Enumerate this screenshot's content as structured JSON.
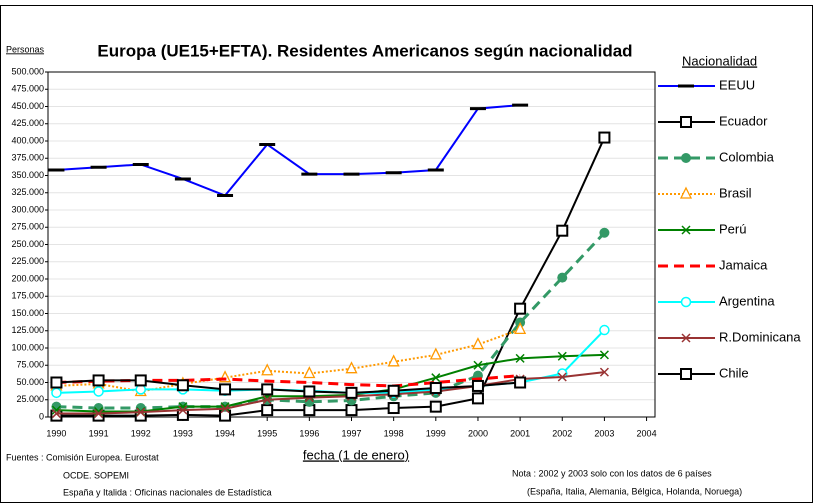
{
  "chart_data": {
    "type": "line",
    "title": "Europa (UE15+EFTA). Residentes Americanos según nacionalidad",
    "ylabel": "Personas",
    "xlabel": "fecha (1 de enero)",
    "legend_title": "Nacionalidad",
    "legend": "right",
    "grid": true,
    "x": [
      1990,
      1991,
      1992,
      1993,
      1994,
      1995,
      1996,
      1997,
      1998,
      1999,
      2000,
      2001,
      2002,
      2003
    ],
    "xlim": [
      1989.8,
      2004.2
    ],
    "xticks": [
      1990,
      1991,
      1992,
      1993,
      1994,
      1995,
      1996,
      1997,
      1998,
      1999,
      2000,
      2001,
      2002,
      2003,
      2004
    ],
    "ylim": [
      0,
      500000
    ],
    "yticks": [
      0,
      {
        "value": 25000,
        "label": "25.000"
      },
      {
        "value": 50000,
        "label": "50.000"
      },
      {
        "value": 75000,
        "label": "75.000"
      },
      {
        "value": 100000,
        "label": "100.000"
      },
      {
        "value": 125000,
        "label": "125.000"
      },
      {
        "value": 150000,
        "label": "150.000"
      },
      {
        "value": 175000,
        "label": "175.000"
      },
      {
        "value": 200000,
        "label": "200.000"
      },
      {
        "value": 225000,
        "label": "225.000"
      },
      {
        "value": 250000,
        "label": "250.000"
      },
      {
        "value": 275000,
        "label": "275.000"
      },
      {
        "value": 300000,
        "label": "300.000"
      },
      {
        "value": 325000,
        "label": "325.000"
      },
      {
        "value": 350000,
        "label": "350.000"
      },
      {
        "value": 375000,
        "label": "375.000"
      },
      {
        "value": 400000,
        "label": "400.000"
      },
      {
        "value": 425000,
        "label": "425.000"
      },
      {
        "value": 450000,
        "label": "450.000"
      },
      {
        "value": 475000,
        "label": "475.000"
      },
      {
        "value": 500000,
        "label": "500.000"
      }
    ],
    "series": [
      {
        "name": "EEUU",
        "color": "#0000ff",
        "marker": "dash",
        "dash": "solid",
        "values": [
          358000,
          362000,
          366000,
          345000,
          321000,
          395000,
          352000,
          352000,
          354000,
          358000,
          447000,
          452000,
          null,
          null
        ]
      },
      {
        "name": "Ecuador",
        "color": "#000000",
        "marker": "square",
        "dash": "solid",
        "values": [
          2000,
          2000,
          2000,
          3000,
          2000,
          10000,
          10000,
          10000,
          13000,
          15000,
          27000,
          157000,
          270000,
          405000
        ]
      },
      {
        "name": "Colombia",
        "color": "#339966",
        "marker": "circle-filled",
        "dash": "dashed",
        "values": [
          15000,
          13000,
          13000,
          15000,
          15000,
          25000,
          22000,
          24000,
          30000,
          35000,
          60000,
          137000,
          202000,
          267000
        ]
      },
      {
        "name": "Brasil",
        "color": "#ff9900",
        "marker": "triangle",
        "dash": "dotted",
        "values": [
          45000,
          48000,
          37000,
          48000,
          57000,
          67000,
          63000,
          70000,
          80000,
          90000,
          105000,
          127000,
          null,
          null
        ]
      },
      {
        "name": "Perú",
        "color": "#008000",
        "marker": "x",
        "dash": "solid",
        "values": [
          10000,
          8000,
          8000,
          15000,
          15000,
          30000,
          30000,
          32000,
          40000,
          57000,
          75000,
          85000,
          88000,
          90000
        ]
      },
      {
        "name": "Jamaica",
        "color": "#ff0000",
        "marker": "none",
        "dash": "dashed",
        "values": [
          50000,
          52000,
          53000,
          53000,
          55000,
          52000,
          50000,
          47000,
          45000,
          50000,
          55000,
          60000,
          null,
          null
        ]
      },
      {
        "name": "Argentina",
        "color": "#00ffff",
        "marker": "circle",
        "dash": "solid",
        "values": [
          35000,
          37000,
          40000,
          40000,
          38000,
          40000,
          38000,
          35000,
          35000,
          40000,
          45000,
          50000,
          63000,
          126000
        ]
      },
      {
        "name": "R.Dominicana",
        "color": "#993333",
        "marker": "x",
        "dash": "solid",
        "values": [
          5000,
          5000,
          7000,
          10000,
          12000,
          25000,
          28000,
          30000,
          33000,
          37000,
          45000,
          55000,
          58000,
          65000
        ]
      },
      {
        "name": "Chile",
        "color": "#000000",
        "marker": "square",
        "dash": "solid",
        "values": [
          50000,
          53000,
          53000,
          46000,
          40000,
          40000,
          37000,
          35000,
          38000,
          42000,
          45000,
          50000,
          null,
          null
        ]
      }
    ]
  },
  "footer": {
    "sources": [
      "Fuentes : Comisión Europea. Eurostat",
      "OCDE. SOPEMI",
      "España y Italida : Oficinas nacionales de Estadística"
    ],
    "note": [
      "Nota :  2002 y 2003 solo con los datos de 6 países",
      "(España, Italia, Alemania, Bélgica, Holanda, Noruega)"
    ]
  }
}
